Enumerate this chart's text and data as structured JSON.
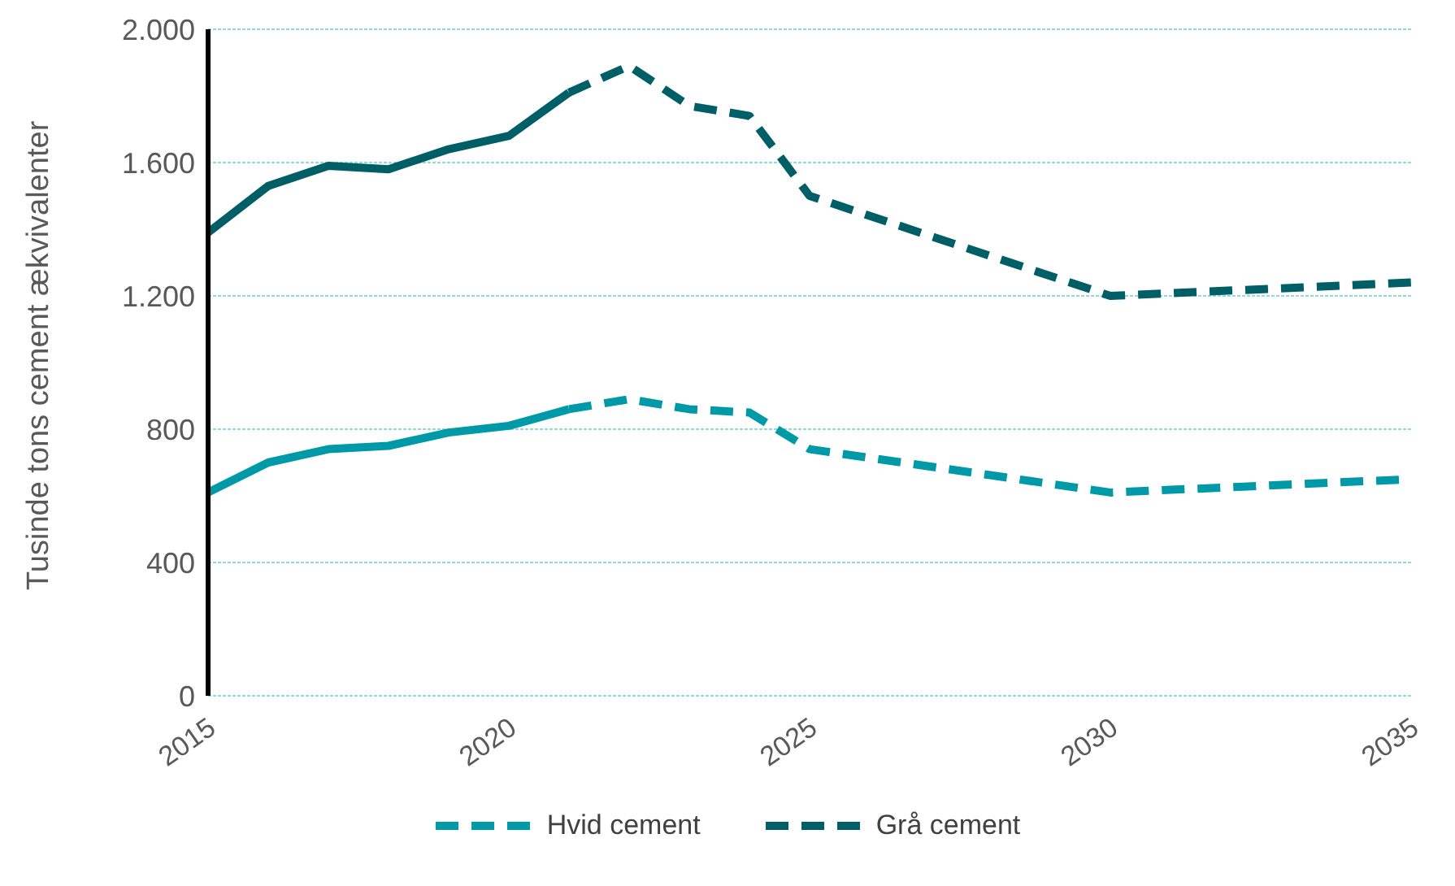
{
  "chart_data": {
    "type": "line",
    "ylabel": "Tusinde tons cement ækvivalenter",
    "series": [
      {
        "color": "#0099a8",
        "line_style": "solid",
        "x": [
          2015,
          2016,
          2017,
          2018,
          2019,
          2020,
          2021
        ],
        "values": [
          610,
          700,
          740,
          750,
          790,
          810,
          860
        ]
      },
      {
        "name": "Hvid cement",
        "color": "#0099a8",
        "line_style": "dashed",
        "x": [
          2021,
          2022,
          2023,
          2024,
          2025,
          2030,
          2035
        ],
        "values": [
          860,
          890,
          860,
          850,
          740,
          610,
          650
        ]
      },
      {
        "color": "#005f66",
        "line_style": "solid",
        "x": [
          2015,
          2016,
          2017,
          2018,
          2019,
          2020,
          2021
        ],
        "values": [
          1390,
          1530,
          1590,
          1580,
          1640,
          1680,
          1810
        ]
      },
      {
        "name": "Grå cement",
        "color": "#005f66",
        "line_style": "dashed",
        "x": [
          2021,
          2022,
          2023,
          2024,
          2025,
          2030,
          2035
        ],
        "values": [
          1810,
          1890,
          1770,
          1740,
          1500,
          1200,
          1240
        ]
      }
    ],
    "xlim": [
      2015,
      2035
    ],
    "xticks": [
      2015,
      2020,
      2025,
      2030,
      2035
    ],
    "ylim": [
      0,
      2000
    ],
    "yticks": [
      0,
      400,
      800,
      {
        "value": 1200,
        "label": "1.200"
      },
      {
        "value": 1600,
        "label": "1.600"
      },
      {
        "value": 2000,
        "label": "2.000"
      }
    ],
    "grid": "y",
    "legend": "bottom",
    "marker": "none"
  }
}
